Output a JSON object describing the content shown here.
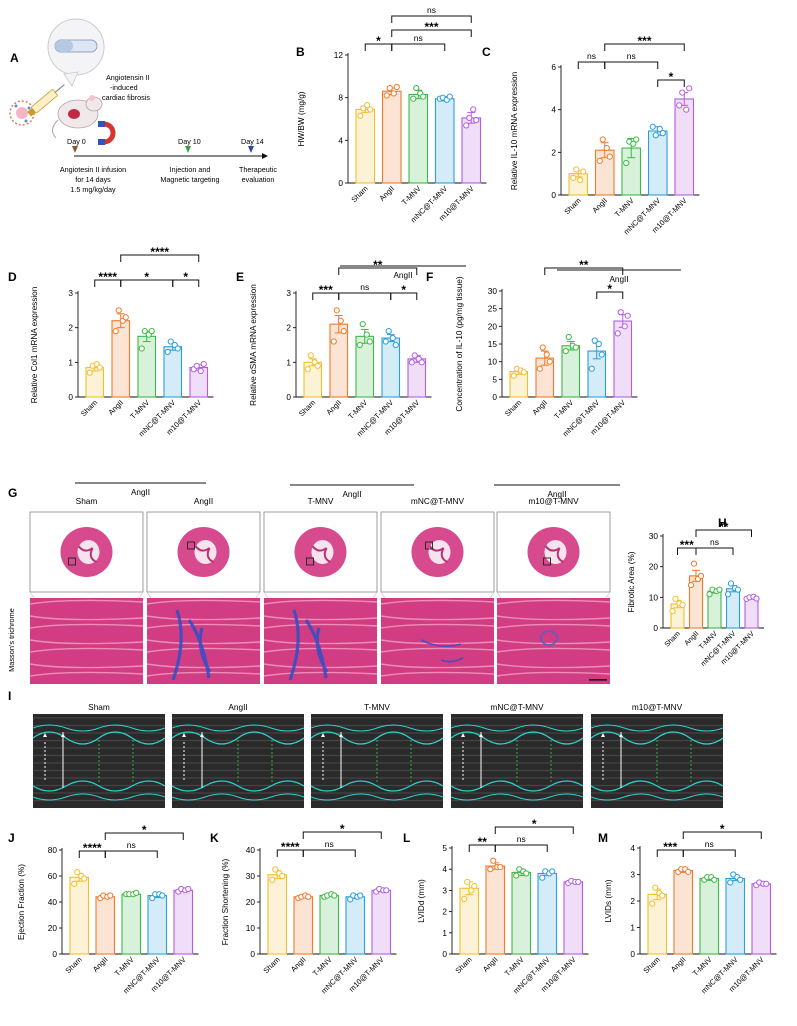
{
  "colors": {
    "Sham": "#F2BE2C",
    "AngII": "#F07A2A",
    "T-MNV": "#3DBA45",
    "mNC@T-MNV": "#2A9FDB",
    "m10@T-MNV": "#B45CE3",
    "tissue_pink": "#D23C82",
    "tissue_light": "#F2CFE0",
    "fibrosis_blue": "#2C4FC9",
    "echo_cyan": "#2FD2CF"
  },
  "groups": [
    "Sham",
    "AngII",
    "T-MNV",
    "mNC@T-MNV",
    "m10@T-MNV"
  ],
  "group_label": "AngII",
  "panelA": {
    "letter": "A",
    "title_line1": "Angiotensin II",
    "title_line2": "-induced",
    "title_line3": "cardiac fibrosis",
    "day0": "Day 0",
    "day10": "Day 10",
    "day14": "Day 14",
    "infusion_line1": "Angiotesin II infusion",
    "infusion_line2": "for 14 days",
    "infusion_line3": "1.5 mg/kg/day",
    "injection_line1": "Injection and",
    "injection_line2": "Magnetic targeting",
    "eval_line1": "Therapeutic",
    "eval_line2": "evaluation",
    "icon_names": [
      "syringe-icon",
      "nanovesicle-icon",
      "mouse-icon",
      "magnet-icon",
      "tube-icon"
    ]
  },
  "histology": {
    "letter": "G",
    "labels": [
      "Sham",
      "AngII",
      "T-MNV",
      "mNC@T-MNV",
      "m10@T-MNV"
    ],
    "stain_label": "Masson's trichrome"
  },
  "echo": {
    "letter": "I",
    "labels": [
      "Sham",
      "AngII",
      "T-MNV",
      "mNC@T-MNV",
      "m10@T-MNV"
    ]
  },
  "chart_data": [
    {
      "id": "B",
      "type": "bar",
      "ylabel": "HW/BW (mg/g)",
      "ylim": [
        0,
        12
      ],
      "ticks": [
        0,
        4,
        8,
        12
      ],
      "categories": [
        "Sham",
        "AngII",
        "T-MNV",
        "mNC@T-MNV",
        "m10@T-MNV"
      ],
      "values": [
        6.9,
        8.6,
        8.3,
        7.9,
        6.1
      ],
      "errors": [
        0.3,
        0.3,
        0.4,
        0.2,
        0.5
      ],
      "points": [
        [
          6.3,
          7.0,
          7.3,
          6.9
        ],
        [
          8.2,
          8.9,
          8.4,
          9.0
        ],
        [
          7.9,
          8.9,
          8.4,
          8.1
        ],
        [
          7.9,
          8.0,
          7.8,
          8.1
        ],
        [
          5.4,
          6.1,
          6.9,
          5.9
        ]
      ],
      "brackets": [
        {
          "from": 1,
          "to": 4,
          "label": "ns",
          "level": 0
        },
        {
          "from": 1,
          "to": 4,
          "label": "***",
          "level": 1
        },
        {
          "from": 1,
          "to": 3,
          "label": "ns",
          "level": 2
        },
        {
          "from": 0,
          "to": 1,
          "label": "*",
          "level": 2
        }
      ],
      "group_from": 1,
      "group_to": 4,
      "group_label": "AngII"
    },
    {
      "id": "C",
      "type": "bar",
      "ylabel": "Relative IL-10 mRNA expression",
      "ylim": [
        0,
        6
      ],
      "ticks": [
        0,
        2,
        4,
        6
      ],
      "categories": [
        "Sham",
        "AngII",
        "T-MNV",
        "mNC@T-MNV",
        "m10@T-MNV"
      ],
      "values": [
        1.0,
        2.1,
        2.2,
        3.0,
        4.5
      ],
      "errors": [
        0.15,
        0.35,
        0.45,
        0.2,
        0.3
      ],
      "points": [
        [
          0.8,
          1.2,
          0.7,
          1.1
        ],
        [
          1.6,
          2.6,
          2.2,
          1.8
        ],
        [
          1.5,
          2.5,
          2.4,
          2.6
        ],
        [
          3.2,
          2.8,
          3.1,
          2.9
        ],
        [
          4.2,
          4.8,
          4.0,
          5.0
        ]
      ],
      "brackets": [
        {
          "from": 1,
          "to": 4,
          "label": "***",
          "level": 0
        },
        {
          "from": 0,
          "to": 1,
          "label": "ns",
          "level": 1
        },
        {
          "from": 1,
          "to": 3,
          "label": "ns",
          "level": 1
        },
        {
          "from": 3,
          "to": 4,
          "label": "*",
          "level": 2
        }
      ],
      "group_from": 1,
      "group_to": 4,
      "group_label": "AngII"
    },
    {
      "id": "D",
      "type": "bar",
      "ylabel": "Relative Col1 mRNA expression",
      "ylim": [
        0,
        3
      ],
      "ticks": [
        0,
        1,
        2,
        3
      ],
      "categories": [
        "Sham",
        "AngII",
        "T-MNV",
        "mNC@T-MNV",
        "m10@T-MNV"
      ],
      "values": [
        0.85,
        2.2,
        1.75,
        1.45,
        0.85
      ],
      "errors": [
        0.1,
        0.2,
        0.15,
        0.1,
        0.08
      ],
      "points": [
        [
          0.7,
          0.9,
          0.95,
          0.85
        ],
        [
          1.9,
          2.5,
          2.2,
          2.3
        ],
        [
          1.4,
          1.9,
          1.8,
          1.9
        ],
        [
          1.3,
          1.6,
          1.5,
          1.4
        ],
        [
          0.8,
          0.9,
          0.75,
          0.95
        ]
      ],
      "brackets": [
        {
          "from": 1,
          "to": 4,
          "label": "****",
          "level": 0
        },
        {
          "from": 0,
          "to": 1,
          "label": "****",
          "level": 1
        },
        {
          "from": 1,
          "to": 3,
          "label": "*",
          "level": 1
        },
        {
          "from": 3,
          "to": 4,
          "label": "*",
          "level": 1
        }
      ],
      "group_from": 1,
      "group_to": 4,
      "group_label": "AngII"
    },
    {
      "id": "E",
      "type": "bar",
      "ylabel": "Relative αSMA mRNA expression",
      "ylim": [
        0,
        3
      ],
      "ticks": [
        0,
        1,
        2,
        3
      ],
      "categories": [
        "Sham",
        "AngII",
        "T-MNV",
        "mNC@T-MNV",
        "m10@T-MNV"
      ],
      "values": [
        1.0,
        2.1,
        1.75,
        1.7,
        1.1
      ],
      "errors": [
        0.1,
        0.25,
        0.2,
        0.1,
        0.1
      ],
      "points": [
        [
          0.8,
          1.2,
          1.0,
          0.9
        ],
        [
          1.6,
          2.5,
          2.2,
          1.9
        ],
        [
          1.5,
          2.1,
          1.8,
          1.6
        ],
        [
          1.6,
          1.9,
          1.7,
          1.5
        ],
        [
          1.0,
          1.2,
          1.1,
          1.0
        ]
      ],
      "brackets": [
        {
          "from": 1,
          "to": 4,
          "label": "**",
          "level": 0
        },
        {
          "from": 0,
          "to": 1,
          "label": "***",
          "level": 1
        },
        {
          "from": 1,
          "to": 3,
          "label": "ns",
          "level": 1
        },
        {
          "from": 3,
          "to": 4,
          "label": "*",
          "level": 1
        }
      ],
      "group_from": 1,
      "group_to": 4,
      "group_label": "AngII"
    },
    {
      "id": "F",
      "type": "bar",
      "ylabel": "Concentration of IL-10 (pg/mg tissue)",
      "ylim": [
        0,
        30
      ],
      "ticks": [
        0,
        5,
        10,
        15,
        20,
        25,
        30
      ],
      "categories": [
        "Sham",
        "AngII",
        "T-MNV",
        "mNC@T-MNV",
        "m10@T-MNV"
      ],
      "values": [
        7.2,
        11.0,
        14.5,
        13.0,
        21.5
      ],
      "errors": [
        0.8,
        2.0,
        1.2,
        2.2,
        1.8
      ],
      "points": [
        [
          6.0,
          8.0,
          7.5,
          7.0
        ],
        [
          8.0,
          14.0,
          12.0,
          10.0
        ],
        [
          13.0,
          17.0,
          14.5,
          14.0
        ],
        [
          8.0,
          16.0,
          15.0,
          12.0
        ],
        [
          18.0,
          24.0,
          20.0,
          23.0
        ]
      ],
      "brackets": [
        {
          "from": 1,
          "to": 4,
          "label": "**",
          "level": 0
        },
        {
          "from": 3,
          "to": 4,
          "label": "*",
          "level": 1
        }
      ],
      "group_from": 1,
      "group_to": 4,
      "group_label": "AngII"
    },
    {
      "id": "H",
      "type": "bar",
      "ylabel": "Fibrotic Area (%)",
      "ylim": [
        0,
        30
      ],
      "ticks": [
        0,
        10,
        20,
        30
      ],
      "categories": [
        "Sham",
        "AngII",
        "T-MNV",
        "mNC@T-MNV",
        "m10@T-MNV"
      ],
      "values": [
        7.8,
        17.0,
        12.0,
        12.8,
        9.8
      ],
      "errors": [
        1.2,
        1.8,
        0.6,
        1.0,
        0.4
      ],
      "points": [
        [
          5.5,
          9.5,
          8.0,
          7.5
        ],
        [
          14.0,
          21.0,
          16.0,
          17.0
        ],
        [
          11.0,
          12.5,
          12.0,
          12.5
        ],
        [
          11.0,
          14.5,
          13.0,
          12.5
        ],
        [
          9.5,
          10.0,
          10.2,
          9.6
        ]
      ],
      "brackets": [
        {
          "from": 1,
          "to": 4,
          "label": "**",
          "level": 0
        },
        {
          "from": 0,
          "to": 1,
          "label": "***",
          "level": 1
        },
        {
          "from": 1,
          "to": 3,
          "label": "ns",
          "level": 1
        }
      ]
    },
    {
      "id": "J",
      "type": "bar",
      "ylabel": "Ejection Fraction (%)",
      "ylim": [
        0,
        80
      ],
      "ticks": [
        0,
        20,
        40,
        60,
        80
      ],
      "categories": [
        "Sham",
        "AngII",
        "T-MNV",
        "mNC@T-MNV",
        "m10@T-MNV"
      ],
      "values": [
        59,
        44,
        46,
        45,
        49
      ],
      "errors": [
        3,
        1,
        0.7,
        1.5,
        0.8
      ],
      "points": [
        [
          54,
          63,
          60,
          58
        ],
        [
          43,
          45,
          44,
          45
        ],
        [
          46,
          46,
          46,
          47
        ],
        [
          43,
          46,
          46,
          45
        ],
        [
          48,
          50,
          49,
          50
        ]
      ],
      "brackets": [
        {
          "from": 1,
          "to": 4,
          "label": "*",
          "level": 0
        },
        {
          "from": 0,
          "to": 1,
          "label": "****",
          "level": 1
        },
        {
          "from": 1,
          "to": 3,
          "label": "ns",
          "level": 1
        }
      ]
    },
    {
      "id": "K",
      "type": "bar",
      "ylabel": "Fraction Shortening (%)",
      "ylim": [
        0,
        40
      ],
      "ticks": [
        0,
        10,
        20,
        30,
        40
      ],
      "categories": [
        "Sham",
        "AngII",
        "T-MNV",
        "mNC@T-MNV",
        "m10@T-MNV"
      ],
      "values": [
        30.5,
        22.0,
        22.5,
        22.0,
        24.5
      ],
      "errors": [
        1.5,
        0.4,
        0.4,
        0.6,
        0.5
      ],
      "points": [
        [
          28.5,
          32.5,
          31.0,
          30.0
        ],
        [
          21.5,
          22.0,
          22.5,
          22.0
        ],
        [
          22.0,
          22.5,
          23.0,
          22.5
        ],
        [
          21.0,
          22.5,
          22.0,
          22.5
        ],
        [
          24.0,
          25.0,
          24.5,
          24.5
        ]
      ],
      "brackets": [
        {
          "from": 1,
          "to": 4,
          "label": "*",
          "level": 0
        },
        {
          "from": 0,
          "to": 1,
          "label": "****",
          "level": 1
        },
        {
          "from": 1,
          "to": 3,
          "label": "ns",
          "level": 1
        }
      ]
    },
    {
      "id": "L",
      "type": "bar",
      "ylabel": "LVIDd (mm)",
      "ylim": [
        0,
        5
      ],
      "ticks": [
        0,
        1,
        2,
        3,
        4,
        5
      ],
      "categories": [
        "Sham",
        "AngII",
        "T-MNV",
        "mNC@T-MNV",
        "m10@T-MNV"
      ],
      "values": [
        3.1,
        4.15,
        3.85,
        3.8,
        3.4
      ],
      "errors": [
        0.3,
        0.15,
        0.15,
        0.1,
        0.05
      ],
      "points": [
        [
          2.6,
          3.4,
          3.0,
          3.2
        ],
        [
          4.0,
          4.4,
          4.1,
          4.1
        ],
        [
          3.7,
          4.0,
          3.9,
          3.8
        ],
        [
          3.6,
          3.9,
          3.8,
          3.9
        ],
        [
          3.35,
          3.45,
          3.4,
          3.4
        ]
      ],
      "brackets": [
        {
          "from": 1,
          "to": 4,
          "label": "*",
          "level": 0
        },
        {
          "from": 0,
          "to": 1,
          "label": "**",
          "level": 1
        },
        {
          "from": 1,
          "to": 3,
          "label": "ns",
          "level": 1
        }
      ]
    },
    {
      "id": "M",
      "type": "bar",
      "ylabel": "LVIDs (mm)",
      "ylim": [
        0,
        4
      ],
      "ticks": [
        0,
        1,
        2,
        3,
        4
      ],
      "categories": [
        "Sham",
        "AngII",
        "T-MNV",
        "mNC@T-MNV",
        "m10@T-MNV"
      ],
      "values": [
        2.25,
        3.15,
        2.85,
        2.85,
        2.65
      ],
      "errors": [
        0.2,
        0.07,
        0.07,
        0.08,
        0.05
      ],
      "points": [
        [
          1.9,
          2.5,
          2.3,
          2.2
        ],
        [
          3.1,
          3.2,
          3.2,
          3.1
        ],
        [
          2.8,
          2.9,
          2.9,
          2.8
        ],
        [
          2.7,
          3.0,
          2.9,
          2.8
        ],
        [
          2.6,
          2.7,
          2.65,
          2.65
        ]
      ],
      "brackets": [
        {
          "from": 1,
          "to": 4,
          "label": "*",
          "level": 0
        },
        {
          "from": 0,
          "to": 1,
          "label": "***",
          "level": 1
        },
        {
          "from": 1,
          "to": 3,
          "label": "ns",
          "level": 1
        }
      ]
    }
  ]
}
